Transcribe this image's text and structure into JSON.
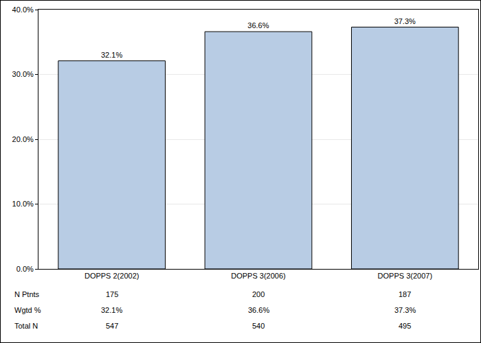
{
  "chart_data": {
    "type": "bar",
    "categories": [
      "DOPPS 2(2002)",
      "DOPPS 3(2006)",
      "DOPPS 3(2007)"
    ],
    "values": [
      32.1,
      36.6,
      37.3
    ],
    "value_labels": [
      "32.1%",
      "36.6%",
      "37.3%"
    ],
    "data_labels": true,
    "color": "#b8cce4",
    "ylim": [
      0,
      40
    ],
    "yticks": [
      {
        "value": 0,
        "label": "0.0%"
      },
      {
        "value": 10,
        "label": "10.0%"
      },
      {
        "value": 20,
        "label": "20.0%"
      },
      {
        "value": 30,
        "label": "30.0%"
      },
      {
        "value": 40,
        "label": "40.0%"
      }
    ],
    "grid": true
  },
  "table": {
    "rows": [
      {
        "label": "N Ptnts",
        "cells": [
          "175",
          "200",
          "187"
        ]
      },
      {
        "label": "Wgtd %",
        "cells": [
          "32.1%",
          "36.6%",
          "37.3%"
        ]
      },
      {
        "label": "Total N",
        "cells": [
          "547",
          "540",
          "495"
        ]
      }
    ]
  }
}
